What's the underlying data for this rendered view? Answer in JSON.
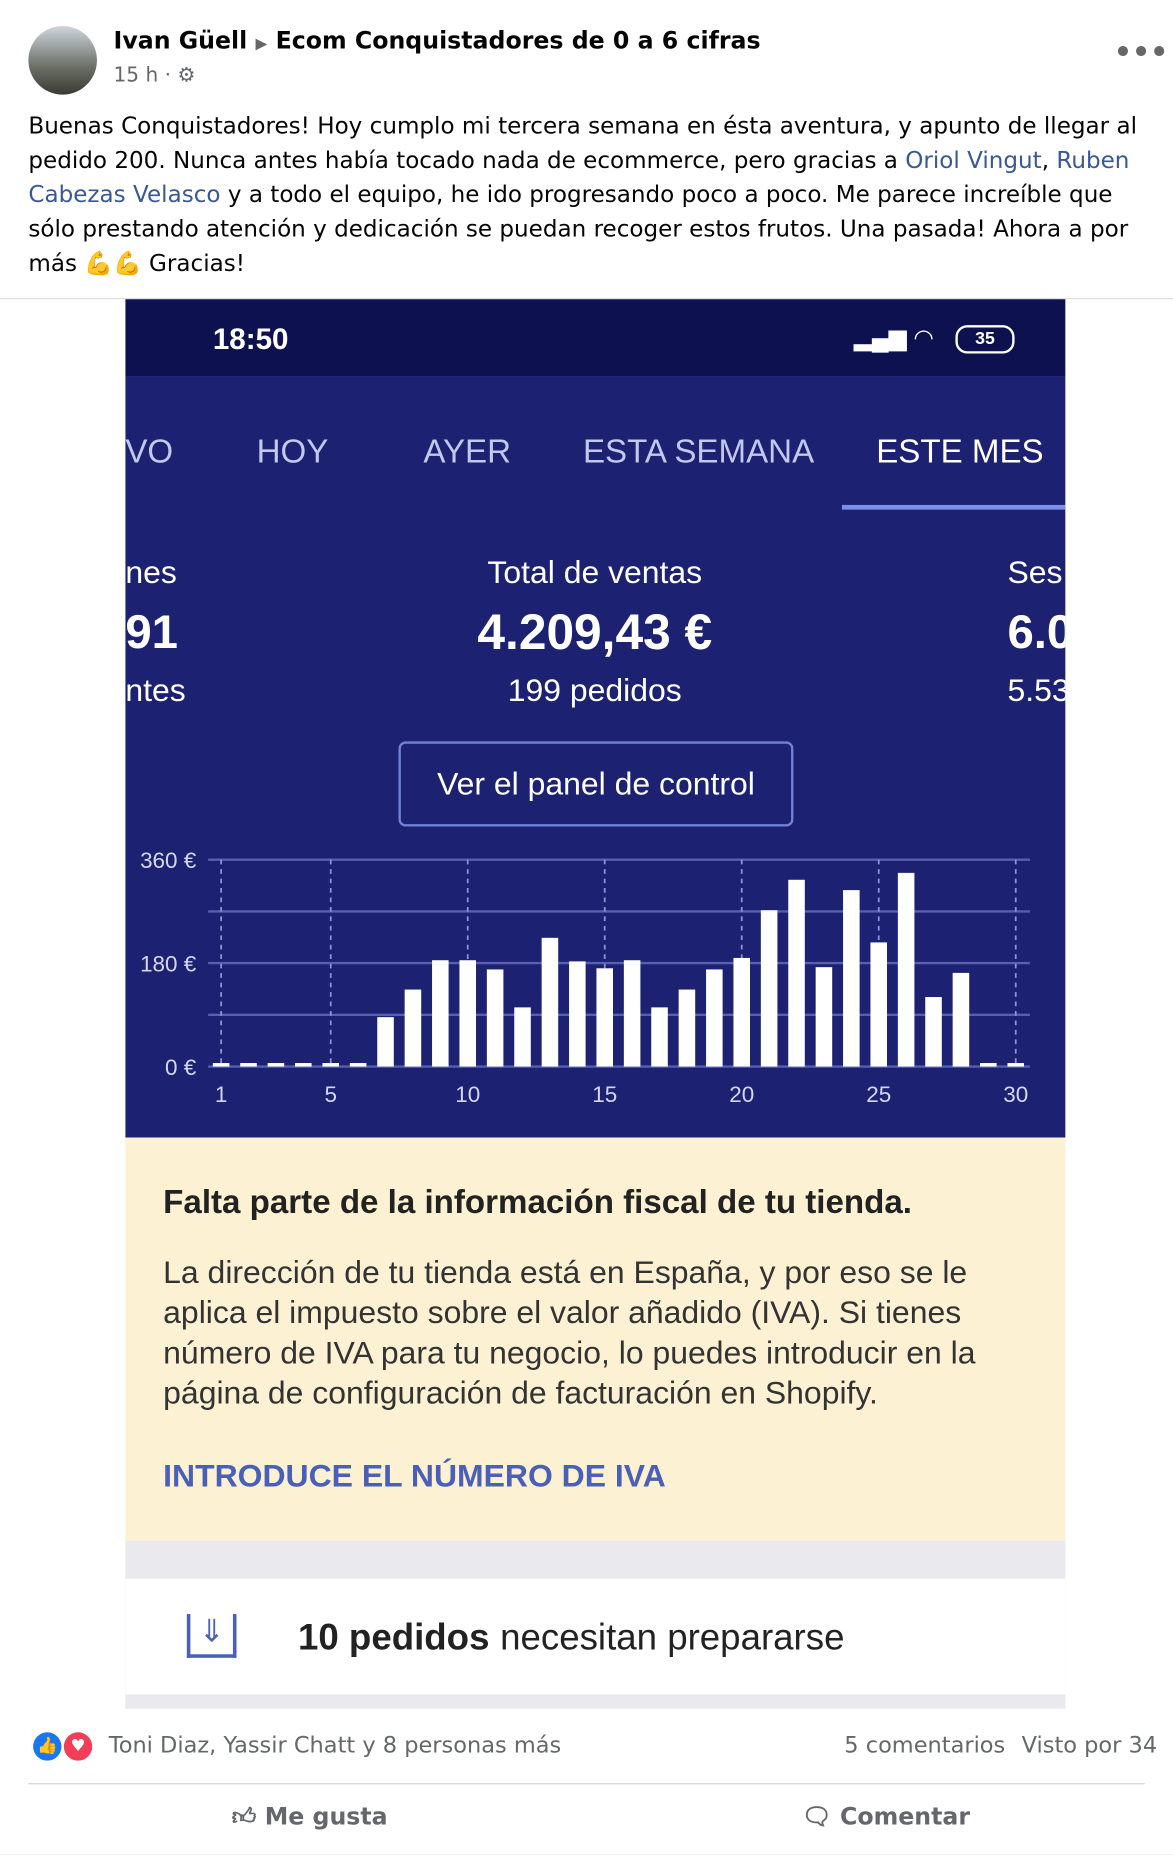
{
  "post": {
    "author": "Ivan Güell",
    "group": "Ecom Conquistadores de 0 a 6 cifras",
    "time": "15 h",
    "body": [
      {
        "text": "Buenas Conquistadores! Hoy cumplo mi tercera semana en ésta aventura, y apunto de llegar al pedido 200. Nunca antes había tocado nada de ecommerce, pero gracias a "
      },
      {
        "link": "Oriol Vingut"
      },
      {
        "text": ", "
      },
      {
        "link": "Ruben Cabezas Velasco"
      },
      {
        "text": " y a todo el equipo, he ido progresando poco a poco. Me parece increíble que sólo prestando atención y dedicación se puedan recoger estos frutos. Una pasada! Ahora a por más 💪💪 Gracias!"
      }
    ]
  },
  "screenshot": {
    "status_time": "18:50",
    "battery": "35",
    "tabs": [
      "VO",
      "HOY",
      "AYER",
      "ESTA SEMANA",
      "ESTE MES"
    ],
    "active_tab": 4,
    "stats": {
      "left": [
        "nes",
        "91",
        "ntes"
      ],
      "center_label": "Total de ventas",
      "center_value": "4.209,43 €",
      "center_sub": "199 pedidos",
      "right": [
        "Ses",
        "6.0",
        "5.53"
      ]
    },
    "button": "Ver el panel de control",
    "chart": {
      "type": "bar",
      "categories": [
        1,
        null,
        null,
        null,
        5,
        null,
        null,
        null,
        null,
        10,
        null,
        null,
        null,
        null,
        15,
        null,
        null,
        null,
        null,
        20,
        null,
        null,
        null,
        null,
        25,
        null,
        null,
        null,
        null,
        30
      ],
      "values": [
        0,
        0,
        0,
        0,
        0,
        0,
        86,
        134,
        185,
        185,
        169,
        103,
        224,
        183,
        171,
        185,
        103,
        134,
        169,
        189,
        272,
        325,
        173,
        307,
        216,
        337,
        121,
        163,
        0,
        0
      ],
      "color": "#ffffff",
      "ylim": [
        0,
        360
      ],
      "yticks": [
        {
          "value": 0,
          "label": "0 €"
        },
        {
          "value": 180,
          "label": "180 €"
        },
        {
          "value": 360,
          "label": "360 €"
        }
      ],
      "minor_yticks": [
        90,
        270
      ],
      "grid": true
    },
    "notice": {
      "title": "Falta parte de la información fiscal de tu tienda.",
      "body": "La dirección de tu tienda está en España, y por eso se le aplica el impuesto sobre el valor añadido (IVA). Si tienes número de IVA para tu negocio, lo puedes introducir en la página de configuración de facturación en Shopify.",
      "action": "INTRODUCE EL NÚMERO DE IVA"
    },
    "orders": {
      "count": "10 pedidos",
      "text": "necesitan prepararse"
    }
  },
  "footer": {
    "reactions": "Toni Diaz, Yassir Chatt y 8 personas más",
    "comments": "5 comentarios",
    "views": "Visto por 34",
    "like": "Me gusta",
    "comment": "Comentar"
  }
}
